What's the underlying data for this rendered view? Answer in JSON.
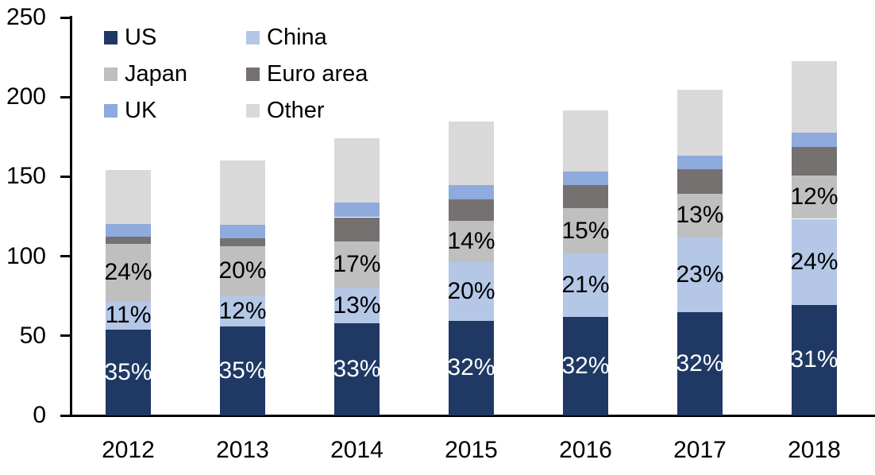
{
  "chart_data": {
    "type": "bar",
    "stacked": true,
    "categories": [
      "2012",
      "2013",
      "2014",
      "2015",
      "2016",
      "2017",
      "2018"
    ],
    "series": [
      {
        "name": "US",
        "color": "#1F3864",
        "values": [
          54,
          56,
          58,
          59.5,
          62,
          65,
          69.5
        ],
        "labels": [
          "35%",
          "35%",
          "33%",
          "32%",
          "32%",
          "32%",
          "31%"
        ],
        "label_color": "#FFFFFF"
      },
      {
        "name": "China",
        "color": "#B4C7E7",
        "values": [
          17.5,
          19,
          22,
          37,
          40,
          47,
          54
        ],
        "labels": [
          "11%",
          "12%",
          "13%",
          "20%",
          "21%",
          "23%",
          "24%"
        ],
        "label_color": "#000000"
      },
      {
        "name": "Japan",
        "color": "#BFBFBF",
        "values": [
          36.5,
          31.5,
          29.5,
          26,
          28,
          27,
          27
        ],
        "labels": [
          "24%",
          "20%",
          "17%",
          "14%",
          "15%",
          "13%",
          "12%"
        ],
        "label_color": "#000000"
      },
      {
        "name": "Euro area",
        "color": "#767171",
        "values": [
          4.5,
          5,
          15,
          13,
          14.5,
          15.5,
          18
        ]
      },
      {
        "name": "UK",
        "color": "#8FAADC",
        "values": [
          8,
          8.5,
          9,
          9,
          8.5,
          8.5,
          9
        ]
      },
      {
        "name": "Other",
        "color": "#D9D9D9",
        "values": [
          33.5,
          40,
          40.5,
          40,
          38.5,
          41.5,
          45
        ]
      }
    ],
    "y_axis": {
      "min": 0,
      "max": 250,
      "tick_step": 50,
      "tick_labels": [
        "0",
        "50",
        "100",
        "150",
        "200",
        "250"
      ]
    },
    "legend": {
      "position": "top-left",
      "columns": 2,
      "items": [
        "US",
        "China",
        "Japan",
        "Euro area",
        "UK",
        "Other"
      ]
    },
    "grid": "off",
    "axis_color": "#000000",
    "background_color": "#FFFFFF"
  }
}
